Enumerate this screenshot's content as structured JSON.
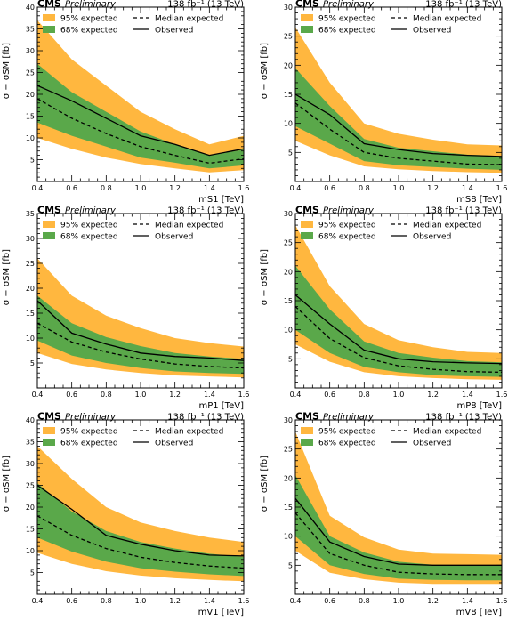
{
  "common": {
    "cms": "CMS",
    "preliminary": "Preliminary",
    "lumi": "138 fb⁻¹ (13 TeV)",
    "ylabel": "σ − σSM [fb]",
    "legend": {
      "band95": "95% expected",
      "band68": "68% expected",
      "median": "Median expected",
      "observed": "Observed"
    },
    "colors": {
      "band95": "#ffb73f",
      "band68": "#5aa84a",
      "line": "#000000"
    }
  },
  "chart_data": [
    {
      "type": "line",
      "xlabel": "mS1 [TeV]",
      "ylim": [
        0,
        40
      ],
      "yticks": [
        5,
        10,
        15,
        20,
        25,
        30,
        35,
        40
      ],
      "xlim": [
        0.4,
        1.6
      ],
      "xticks": [
        0.4,
        0.6,
        0.8,
        1.0,
        1.2,
        1.4,
        1.6
      ],
      "x": [
        0.4,
        0.6,
        0.8,
        1.0,
        1.2,
        1.4,
        1.6
      ],
      "observed": [
        22,
        18.5,
        14.5,
        10.5,
        8.5,
        6,
        7.5
      ],
      "median": [
        19,
        14.5,
        11,
        8,
        6,
        4.2,
        5.2
      ],
      "band68": {
        "low": [
          13.5,
          10.5,
          8,
          5.5,
          4.3,
          3,
          3.7
        ],
        "high": [
          27,
          20.5,
          16,
          11.5,
          8.5,
          6,
          7.3
        ]
      },
      "band95": {
        "low": [
          10,
          7.5,
          5.5,
          4,
          3,
          2.1,
          2.6
        ],
        "high": [
          37,
          28,
          22,
          16,
          12,
          8.5,
          10.5
        ]
      }
    },
    {
      "type": "line",
      "xlabel": "mS8 [TeV]",
      "ylim": [
        0,
        30
      ],
      "yticks": [
        5,
        10,
        15,
        20,
        25,
        30
      ],
      "xlim": [
        0.4,
        1.6
      ],
      "xticks": [
        0.4,
        0.6,
        0.8,
        1.0,
        1.2,
        1.4,
        1.6
      ],
      "x": [
        0.4,
        0.6,
        0.8,
        1.0,
        1.2,
        1.4,
        1.6
      ],
      "observed": [
        15,
        11.5,
        6.5,
        5.5,
        4.8,
        4.5,
        4.3
      ],
      "median": [
        13.5,
        9,
        5,
        4,
        3.5,
        3,
        2.9
      ],
      "band68": {
        "low": [
          9.5,
          6.5,
          3.5,
          2.8,
          2.5,
          2.2,
          2
        ],
        "high": [
          19.5,
          13,
          7.3,
          5.8,
          5.2,
          4.6,
          4.4
        ]
      },
      "band95": {
        "low": [
          7,
          4.5,
          2.6,
          2.1,
          1.8,
          1.6,
          1.5
        ],
        "high": [
          26.5,
          17,
          10,
          8.2,
          7.2,
          6.4,
          6.2
        ]
      }
    },
    {
      "type": "line",
      "xlabel": "mP1 [TeV]",
      "ylim": [
        0,
        35
      ],
      "yticks": [
        5,
        10,
        15,
        20,
        25,
        30,
        35
      ],
      "xlim": [
        0.4,
        1.6
      ],
      "xticks": [
        0.4,
        0.6,
        0.8,
        1.0,
        1.2,
        1.4,
        1.6
      ],
      "x": [
        0.4,
        0.6,
        0.8,
        1.0,
        1.2,
        1.4,
        1.6
      ],
      "observed": [
        17.5,
        11,
        8.8,
        7,
        6.3,
        6,
        5.5
      ],
      "median": [
        13,
        9.2,
        7.2,
        5.8,
        4.8,
        4.3,
        4
      ],
      "band68": {
        "low": [
          9.5,
          6.5,
          5,
          4,
          3.3,
          3,
          2.8
        ],
        "high": [
          18.5,
          13,
          10.2,
          8.4,
          7,
          6.3,
          5.8
        ]
      },
      "band95": {
        "low": [
          7,
          4.8,
          3.7,
          3,
          2.5,
          2.3,
          2.1
        ],
        "high": [
          26,
          18.5,
          14.5,
          12,
          10,
          9,
          8.3
        ]
      }
    },
    {
      "type": "line",
      "xlabel": "mP8 [TeV]",
      "ylim": [
        0,
        30
      ],
      "yticks": [
        5,
        10,
        15,
        20,
        25,
        30
      ],
      "xlim": [
        0.4,
        1.6
      ],
      "xticks": [
        0.4,
        0.6,
        0.8,
        1.0,
        1.2,
        1.4,
        1.6
      ],
      "x": [
        0.4,
        0.6,
        0.8,
        1.0,
        1.2,
        1.4,
        1.6
      ],
      "observed": [
        16,
        11,
        6.5,
        5,
        4.5,
        4.3,
        4.2
      ],
      "median": [
        14,
        8.5,
        5.2,
        3.8,
        3.2,
        2.8,
        2.7
      ],
      "band68": {
        "low": [
          10,
          6,
          3.6,
          2.7,
          2.2,
          2,
          1.9
        ],
        "high": [
          21,
          13.5,
          8,
          6,
          5.2,
          4.6,
          4.4
        ]
      },
      "band95": {
        "low": [
          7.5,
          4.5,
          2.7,
          2,
          1.7,
          1.5,
          1.4
        ],
        "high": [
          28,
          17.5,
          11,
          8.2,
          7,
          6.2,
          6
        ]
      }
    },
    {
      "type": "line",
      "xlabel": "mV1 [TeV]",
      "ylim": [
        0,
        40
      ],
      "yticks": [
        5,
        10,
        15,
        20,
        25,
        30,
        35,
        40
      ],
      "xlim": [
        0.4,
        1.6
      ],
      "xticks": [
        0.4,
        0.6,
        0.8,
        1.0,
        1.2,
        1.4,
        1.6
      ],
      "x": [
        0.4,
        0.6,
        0.8,
        1.0,
        1.2,
        1.4,
        1.6
      ],
      "observed": [
        25,
        19.5,
        13.5,
        11.5,
        10,
        9,
        8.8
      ],
      "median": [
        18,
        13.5,
        10.5,
        8.5,
        7.3,
        6.5,
        6
      ],
      "band68": {
        "low": [
          13,
          9.8,
          7.5,
          6,
          5.2,
          4.6,
          4.2
        ],
        "high": [
          25.5,
          19,
          14.5,
          12,
          10.5,
          9.3,
          8.6
        ]
      },
      "band95": {
        "low": [
          9.5,
          7,
          5.3,
          4.3,
          3.7,
          3.3,
          3
        ],
        "high": [
          34,
          26.5,
          20,
          16.5,
          14.5,
          13,
          12
        ]
      }
    },
    {
      "type": "line",
      "xlabel": "mV8 [TeV]",
      "ylim": [
        0,
        30
      ],
      "yticks": [
        5,
        10,
        15,
        20,
        25,
        30
      ],
      "xlim": [
        0.4,
        1.6
      ],
      "xticks": [
        0.4,
        0.6,
        0.8,
        1.0,
        1.2,
        1.4,
        1.6
      ],
      "x": [
        0.4,
        0.6,
        0.8,
        1.0,
        1.2,
        1.4,
        1.6
      ],
      "observed": [
        16.5,
        9,
        6.5,
        5.2,
        5,
        5,
        5
      ],
      "median": [
        14,
        7,
        5,
        3.8,
        3.5,
        3.4,
        3.4
      ],
      "band68": {
        "low": [
          10,
          5,
          3.5,
          2.7,
          2.5,
          2.4,
          2.4
        ],
        "high": [
          20.5,
          10,
          7.2,
          5.6,
          5.1,
          5,
          5
        ]
      },
      "band95": {
        "low": [
          7.5,
          3.7,
          2.6,
          2,
          1.8,
          1.8,
          1.8
        ],
        "high": [
          28,
          13.5,
          9.8,
          7.7,
          7,
          6.9,
          6.8
        ]
      }
    }
  ]
}
